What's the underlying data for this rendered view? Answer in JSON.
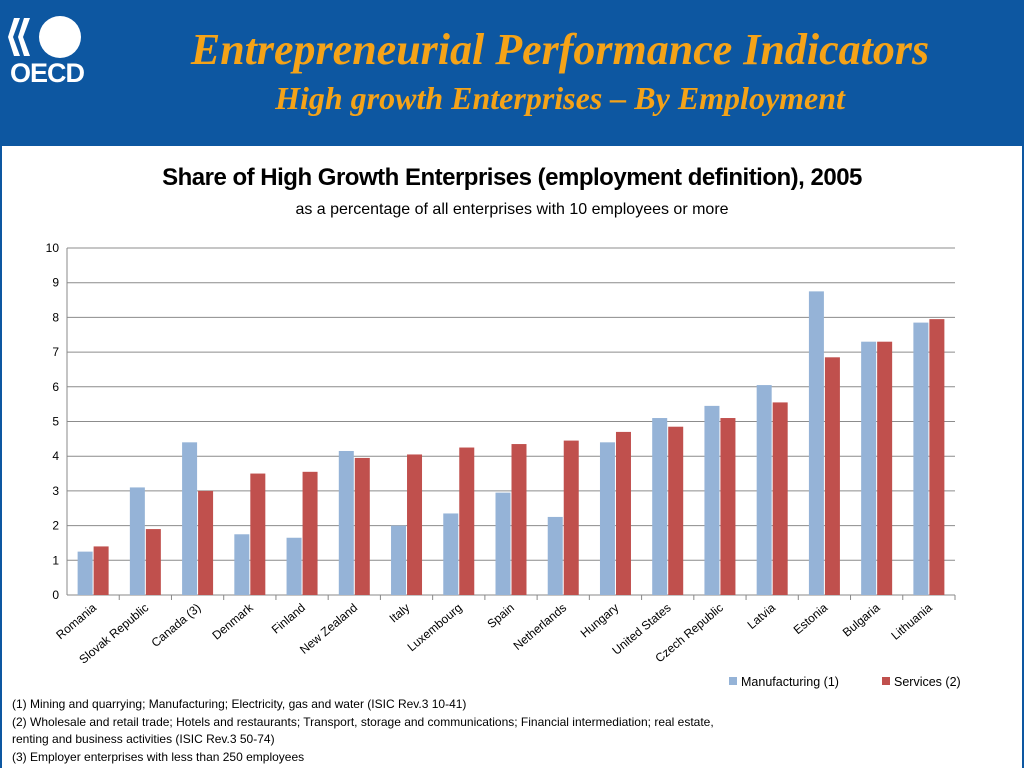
{
  "header": {
    "logo_text": "OECD",
    "title": "Entrepreneurial Performance Indicators",
    "subtitle": "High growth Enterprises – By Employment"
  },
  "colors": {
    "header_bg": "#0d57a1",
    "title": "#f5a318",
    "manufacturing": "#95b3d7",
    "services": "#c0504d"
  },
  "chart_data": {
    "type": "bar",
    "title": "Share of High Growth Enterprises (employment definition), 2005",
    "subtitle": "as a percentage of all enterprises with 10 employees or more",
    "categories": [
      "Romania",
      "Slovak Republic",
      "Canada (3)",
      "Denmark",
      "Finland",
      "New Zealand",
      "Italy",
      "Luxembourg",
      "Spain",
      "Netherlands",
      "Hungary",
      "United States",
      "Czech Republic",
      "Latvia",
      "Estonia",
      "Bulgaria",
      "Lithuania"
    ],
    "series": [
      {
        "name": "Manufacturing (1)",
        "values": [
          1.25,
          3.1,
          4.4,
          1.75,
          1.65,
          4.15,
          2.0,
          2.35,
          2.95,
          2.25,
          4.4,
          5.1,
          5.45,
          6.05,
          8.75,
          7.3,
          7.85
        ]
      },
      {
        "name": "Services (2)",
        "values": [
          1.4,
          1.9,
          3.0,
          3.5,
          3.55,
          3.95,
          4.05,
          4.25,
          4.35,
          4.45,
          4.7,
          4.85,
          5.1,
          5.55,
          6.85,
          7.3,
          7.95
        ]
      }
    ],
    "ylim": [
      0,
      10
    ],
    "yticks": [
      0,
      1,
      2,
      3,
      4,
      5,
      6,
      7,
      8,
      9,
      10
    ],
    "grid": true,
    "legend": "bottom-right",
    "xlabel": "",
    "ylabel": ""
  },
  "footnotes": [
    "(1) Mining and quarrying; Manufacturing; Electricity, gas and water (ISIC Rev.3 10-41)",
    "(2) Wholesale and retail trade; Hotels and restaurants; Transport, storage and communications; Financial intermediation; real estate,",
    "renting and business activities (ISIC Rev.3 50-74)",
    "(3) Employer enterprises with less than 250 employees"
  ]
}
